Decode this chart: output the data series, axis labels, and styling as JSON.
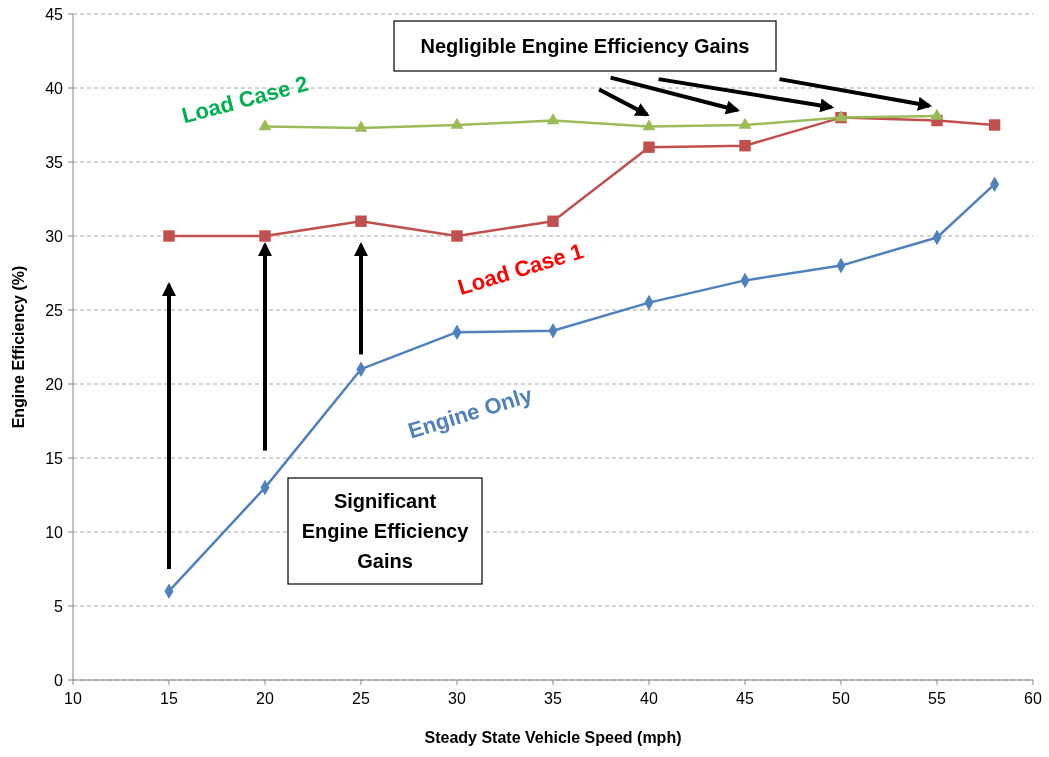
{
  "chart_data": {
    "type": "line",
    "xlabel": "Steady State Vehicle Speed (mph)",
    "ylabel": "Engine Efficiency (%)",
    "xlim": [
      10,
      60
    ],
    "xticks": [
      10,
      15,
      20,
      25,
      30,
      35,
      40,
      45,
      50,
      55,
      60
    ],
    "ylim": [
      0,
      45
    ],
    "yticks": [
      0,
      5,
      10,
      15,
      20,
      25,
      30,
      35,
      40,
      45
    ],
    "grid": "y",
    "series": [
      {
        "name": "Engine Only",
        "color": "#4f81bd",
        "marker": "diamond",
        "x": [
          15,
          20,
          25,
          30,
          35,
          40,
          45,
          50,
          55,
          58
        ],
        "values": [
          6,
          13,
          21,
          23.5,
          23.6,
          25.5,
          27,
          28,
          29.9,
          33.5
        ]
      },
      {
        "name": "Load Case 1",
        "color": "#c0504d",
        "marker": "square",
        "x": [
          15,
          20,
          25,
          30,
          35,
          40,
          45,
          50,
          55,
          58
        ],
        "values": [
          30,
          30,
          31,
          30,
          31,
          36,
          36.1,
          38,
          37.8,
          37.5
        ]
      },
      {
        "name": "Load Case 2",
        "color": "#9bbb59",
        "marker": "triangle",
        "x": [
          20,
          25,
          30,
          35,
          40,
          45,
          50,
          55
        ],
        "values": [
          37.4,
          37.3,
          37.5,
          37.8,
          37.4,
          37.5,
          38,
          38.1
        ]
      }
    ],
    "annotations": [
      "Significant\nEngine Efficiency\nGains",
      "Negligible Engine Efficiency Gains"
    ]
  }
}
